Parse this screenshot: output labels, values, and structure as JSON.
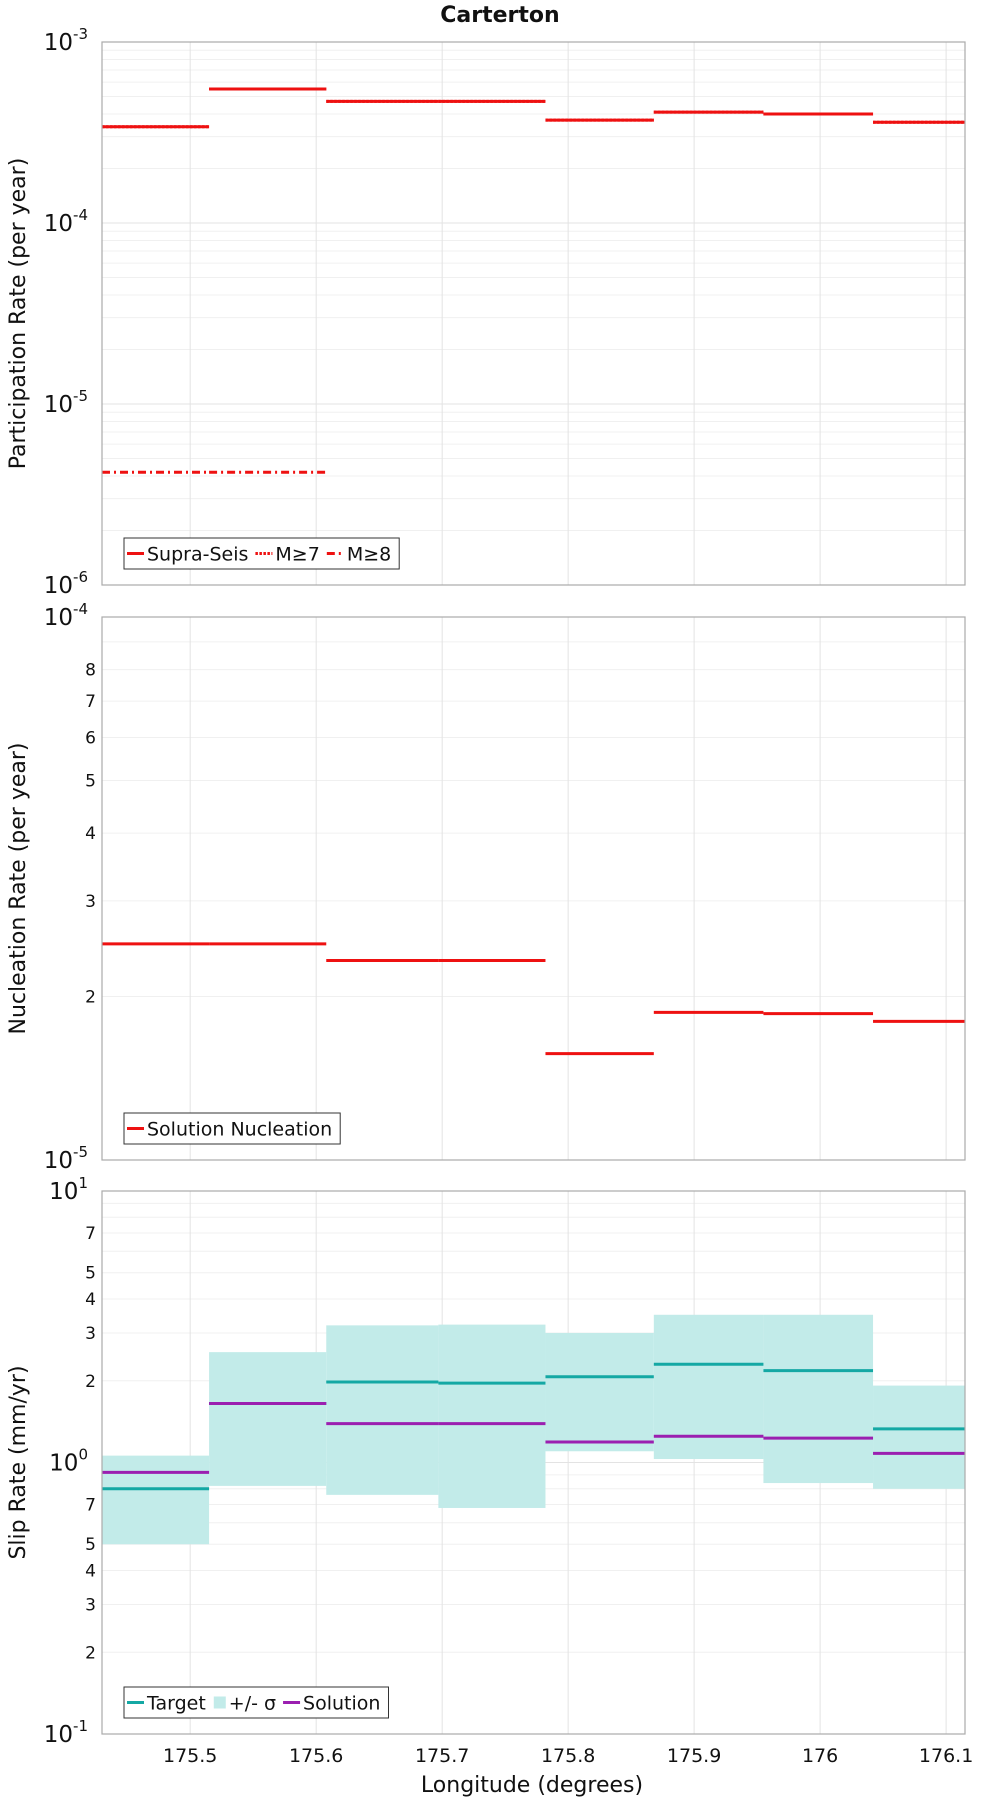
{
  "title": "Carterton",
  "xlabel": "Longitude (degrees)",
  "x_ticks": [
    175.5,
    175.6,
    175.7,
    175.8,
    175.9,
    176,
    176.1
  ],
  "x_tick_labels": [
    "175.5",
    "175.6",
    "175.7",
    "175.8",
    "175.9",
    "176",
    "176.1"
  ],
  "xlim": [
    175.43,
    176.115
  ],
  "colors": {
    "red": "#ee1111",
    "teal": "#14a8a4",
    "purple": "#9b1fb0",
    "band": "#c2ebe9"
  },
  "chart_data": [
    {
      "type": "line",
      "step": true,
      "ylabel": "Participation Rate (per year)",
      "yscale": "log",
      "ylim": [
        1e-06,
        0.001
      ],
      "y_ticks": [
        {
          "value": 1e-06,
          "base": "10",
          "exp": "-6"
        },
        {
          "value": 1e-05,
          "base": "10",
          "exp": "-5"
        },
        {
          "value": 0.0001,
          "base": "10",
          "exp": "-4"
        },
        {
          "value": 0.001,
          "base": "10",
          "exp": "-3"
        }
      ],
      "bin_edges": [
        175.43,
        175.515,
        175.608,
        175.697,
        175.782,
        175.868,
        175.955,
        176.042,
        176.115
      ],
      "series": [
        {
          "name": "Supra-Seis",
          "style": "solid",
          "color": "#ee1111",
          "values": [
            0.00034,
            0.00055,
            0.00047,
            0.00047,
            0.00037,
            0.00041,
            0.0004,
            0.00036
          ]
        },
        {
          "name": "M≥7",
          "style": "dotted",
          "color": "#ee1111",
          "values": [
            0.00034,
            0.00055,
            0.00047,
            0.00047,
            0.00037,
            0.00041,
            0.0004,
            0.00036
          ]
        },
        {
          "name": "M≥8",
          "style": "dashdot",
          "color": "#ee1111",
          "values": [
            4.2e-06,
            4.2e-06,
            null,
            null,
            null,
            null,
            null,
            null
          ]
        }
      ],
      "legend": [
        {
          "label": "Supra-Seis",
          "style": "solid",
          "color": "#ee1111"
        },
        {
          "label": "M≥7",
          "style": "dotted",
          "color": "#ee1111"
        },
        {
          "label": "M≥8",
          "style": "dashdot",
          "color": "#ee1111"
        }
      ]
    },
    {
      "type": "line",
      "step": true,
      "ylabel": "Nucleation Rate (per year)",
      "yscale": "log",
      "ylim": [
        1e-05,
        0.0001
      ],
      "y_ticks": [
        {
          "value": 1e-05,
          "base": "10",
          "exp": "-5"
        },
        {
          "value": 2e-05,
          "label": "2"
        },
        {
          "value": 3e-05,
          "label": "3"
        },
        {
          "value": 4e-05,
          "label": "4"
        },
        {
          "value": 5e-05,
          "label": "5"
        },
        {
          "value": 6e-05,
          "label": "6"
        },
        {
          "value": 7e-05,
          "label": "7"
        },
        {
          "value": 8e-05,
          "label": "8"
        },
        {
          "value": 0.0001,
          "base": "10",
          "exp": "-4"
        }
      ],
      "bin_edges": [
        175.43,
        175.515,
        175.608,
        175.697,
        175.782,
        175.868,
        175.955,
        176.042,
        176.115
      ],
      "series": [
        {
          "name": "Solution Nucleation",
          "style": "solid",
          "color": "#ee1111",
          "values": [
            2.5e-05,
            2.5e-05,
            2.33e-05,
            2.33e-05,
            1.57e-05,
            1.87e-05,
            1.86e-05,
            1.8e-05
          ]
        }
      ],
      "legend": [
        {
          "label": "Solution Nucleation",
          "style": "solid",
          "color": "#ee1111"
        }
      ]
    },
    {
      "type": "line",
      "step": true,
      "ylabel": "Slip Rate (mm/yr)",
      "xlabel": "Longitude (degrees)",
      "yscale": "log",
      "ylim": [
        0.1,
        10
      ],
      "y_ticks": [
        {
          "value": 0.1,
          "base": "10",
          "exp": "-1"
        },
        {
          "value": 0.2,
          "label": "2"
        },
        {
          "value": 0.3,
          "label": "3"
        },
        {
          "value": 0.4,
          "label": "4"
        },
        {
          "value": 0.5,
          "label": "5"
        },
        {
          "value": 0.7,
          "label": "7"
        },
        {
          "value": 1,
          "base": "10",
          "exp": "0"
        },
        {
          "value": 2,
          "label": "2"
        },
        {
          "value": 3,
          "label": "3"
        },
        {
          "value": 4,
          "label": "4"
        },
        {
          "value": 5,
          "label": "5"
        },
        {
          "value": 7,
          "label": "7"
        },
        {
          "value": 10,
          "base": "10",
          "exp": "1"
        }
      ],
      "bin_edges": [
        175.43,
        175.515,
        175.608,
        175.697,
        175.782,
        175.868,
        175.955,
        176.042,
        176.115
      ],
      "bands": [
        {
          "name": "+/- σ",
          "color": "#c2ebe9",
          "lower": [
            0.5,
            0.82,
            0.76,
            0.68,
            1.1,
            1.03,
            0.84,
            0.8
          ],
          "upper": [
            1.06,
            2.55,
            3.2,
            3.22,
            3.0,
            3.5,
            3.5,
            1.92
          ]
        }
      ],
      "series": [
        {
          "name": "Target",
          "style": "solid",
          "color": "#14a8a4",
          "values": [
            0.8,
            1.65,
            1.98,
            1.96,
            2.07,
            2.3,
            2.18,
            1.33
          ]
        },
        {
          "name": "Solution",
          "style": "solid",
          "color": "#9b1fb0",
          "values": [
            0.92,
            1.65,
            1.39,
            1.39,
            1.19,
            1.25,
            1.23,
            1.08
          ]
        }
      ],
      "legend": [
        {
          "label": "Target",
          "style": "solid",
          "color": "#14a8a4"
        },
        {
          "label": "+/- σ",
          "style": "band",
          "color": "#c2ebe9"
        },
        {
          "label": "Solution",
          "style": "solid",
          "color": "#9b1fb0"
        }
      ]
    }
  ]
}
